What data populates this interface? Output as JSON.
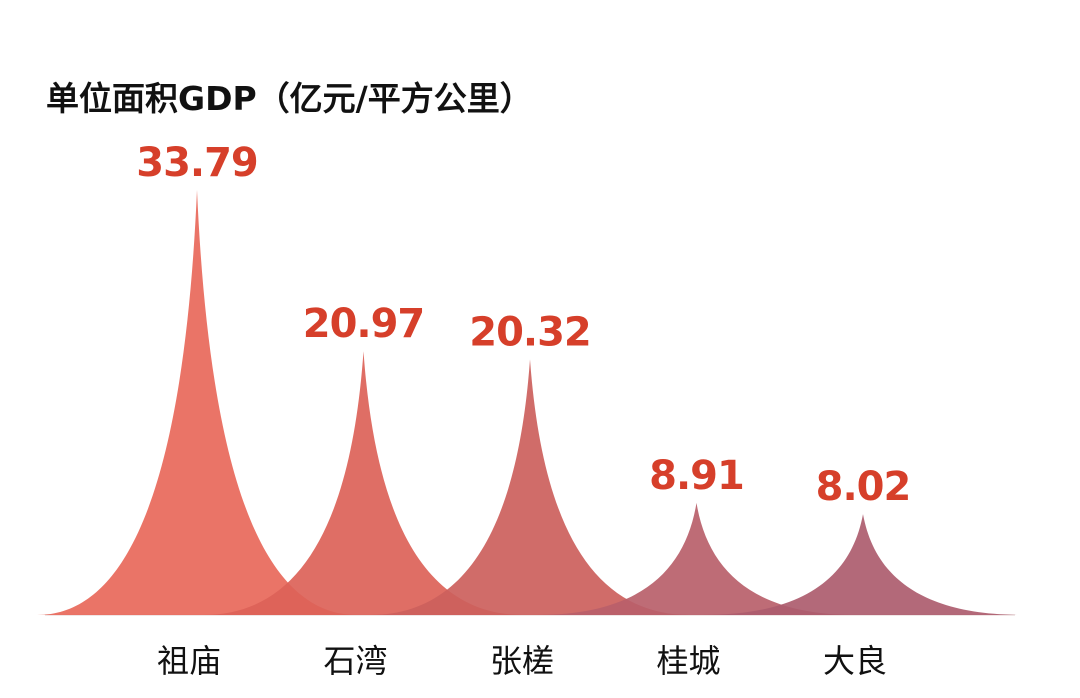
{
  "chart_data": {
    "type": "area",
    "title": "单位面积GDP（亿元/平方公里）",
    "categories": [
      "祖庙",
      "石湾",
      "张槎",
      "桂城",
      "大良"
    ],
    "values": [
      33.79,
      20.97,
      20.32,
      8.91,
      8.02
    ],
    "value_labels": [
      "33.79",
      "20.97",
      "20.32",
      "8.91",
      "8.02"
    ],
    "xlabel": "",
    "ylabel": "",
    "ylim": [
      0,
      33.79
    ],
    "grid": false,
    "legend": "none",
    "colors": [
      "#e8685a",
      "#dc6258",
      "#cc5f5c",
      "#b8606a",
      "#ac5c6e"
    ],
    "label_color": "#d63f2a"
  }
}
